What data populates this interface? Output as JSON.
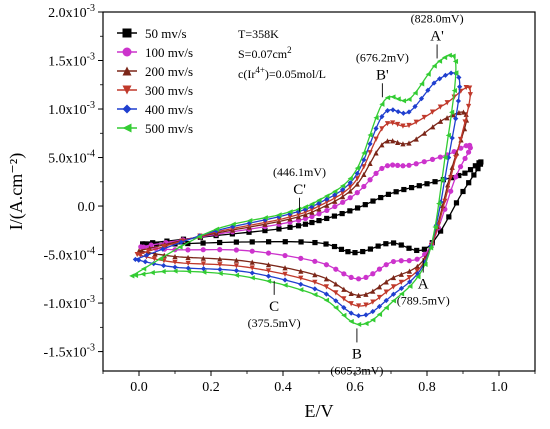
{
  "chart_data": {
    "type": "line",
    "xlabel": "E/V",
    "ylabel": "I/(A.cm⁻²)",
    "xlim": [
      -0.1,
      1.1
    ],
    "ylim": [
      -0.0017,
      0.002
    ],
    "x_ticks": [
      0.0,
      0.2,
      0.4,
      0.6,
      0.8,
      1.0
    ],
    "x_tick_labels": [
      "0.0",
      "0.2",
      "0.4",
      "0.6",
      "0.8",
      "1.0"
    ],
    "y_ticks": [
      0.002,
      0.0015,
      0.001,
      0.0005,
      0.0,
      -0.0005,
      -0.001,
      -0.0015
    ],
    "y_tick_labels": [
      {
        "mant": "2.0x10",
        "exp": "-3"
      },
      {
        "mant": "1.5x10",
        "exp": "-3"
      },
      {
        "mant": "1.0x10",
        "exp": "-3"
      },
      {
        "mant": "5.0x10",
        "exp": "-4"
      },
      {
        "mant": "0.0",
        "exp": ""
      },
      {
        "mant": "-5.0x10",
        "exp": "-4"
      },
      {
        "mant": "-1.0x10",
        "exp": "-3"
      },
      {
        "mant": "-1.5x10",
        "exp": "-3"
      }
    ],
    "legend_position": "top-left",
    "conditions": [
      {
        "text": "T=358K"
      },
      {
        "text": "S=0.07cm",
        "sup": "2"
      },
      {
        "text": "c(Ir",
        "sup": "4+",
        "tail": ")=0.05mol/L"
      }
    ],
    "series": [
      {
        "name": "50 mv/s",
        "color": "#000000",
        "marker": "square",
        "anodic": [
          [
            0.01,
            -0.00039
          ],
          [
            0.2,
            -0.00031
          ],
          [
            0.4,
            -0.00023
          ],
          [
            0.5,
            -0.00015
          ],
          [
            0.6,
            -3e-05
          ],
          [
            0.7,
            0.00013
          ],
          [
            0.8,
            0.00023
          ],
          [
            0.9,
            0.00033
          ],
          [
            0.95,
            0.00045
          ]
        ],
        "cathodic": [
          [
            0.95,
            0.00045
          ],
          [
            0.9,
            0.00015
          ],
          [
            0.8,
            -0.00043
          ],
          [
            0.7,
            -0.00038
          ],
          [
            0.6,
            -0.00048
          ],
          [
            0.5,
            -0.00038
          ],
          [
            0.3,
            -0.00037
          ],
          [
            0.1,
            -0.00039
          ],
          [
            0.01,
            -0.00039
          ]
        ]
      },
      {
        "name": "100 mv/s",
        "color": "#cc33cc",
        "marker": "circle",
        "anodic": [
          [
            0.005,
            -0.00042
          ],
          [
            0.2,
            -0.0003
          ],
          [
            0.4,
            -0.00018
          ],
          [
            0.5,
            -8e-05
          ],
          [
            0.6,
            0.00012
          ],
          [
            0.68,
            0.0004
          ],
          [
            0.75,
            0.00042
          ],
          [
            0.85,
            0.00052
          ],
          [
            0.92,
            0.00062
          ]
        ],
        "cathodic": [
          [
            0.92,
            0.00062
          ],
          [
            0.88,
            0.0003
          ],
          [
            0.8,
            -0.00047
          ],
          [
            0.7,
            -0.00058
          ],
          [
            0.61,
            -0.00075
          ],
          [
            0.5,
            -0.00058
          ],
          [
            0.3,
            -0.00046
          ],
          [
            0.1,
            -0.00045
          ],
          [
            0.005,
            -0.00042
          ]
        ]
      },
      {
        "name": "200 mv/s",
        "color": "#7b2618",
        "marker": "triangle-up",
        "anodic": [
          [
            0.0,
            -0.00046
          ],
          [
            0.2,
            -0.00029
          ],
          [
            0.4,
            -0.00015
          ],
          [
            0.5,
            -3e-05
          ],
          [
            0.6,
            0.0002
          ],
          [
            0.68,
            0.00065
          ],
          [
            0.75,
            0.00065
          ],
          [
            0.85,
            0.0009
          ],
          [
            0.91,
            0.00093
          ]
        ],
        "cathodic": [
          [
            0.91,
            0.00093
          ],
          [
            0.87,
            0.0004
          ],
          [
            0.8,
            -0.0005
          ],
          [
            0.7,
            -0.00075
          ],
          [
            0.61,
            -0.00092
          ],
          [
            0.5,
            -0.00072
          ],
          [
            0.3,
            -0.00057
          ],
          [
            0.1,
            -0.00052
          ],
          [
            0.0,
            -0.00046
          ]
        ]
      },
      {
        "name": "300 mv/s",
        "color": "#c0392b",
        "marker": "triangle-down",
        "anodic": [
          [
            -0.005,
            -0.0005
          ],
          [
            0.2,
            -0.00028
          ],
          [
            0.4,
            -0.00013
          ],
          [
            0.5,
            0.0
          ],
          [
            0.6,
            0.00025
          ],
          [
            0.68,
            0.00082
          ],
          [
            0.75,
            0.00083
          ],
          [
            0.85,
            0.00105
          ],
          [
            0.92,
            0.0012
          ]
        ],
        "cathodic": [
          [
            0.92,
            0.0012
          ],
          [
            0.88,
            0.0005
          ],
          [
            0.8,
            -0.00052
          ],
          [
            0.7,
            -0.00085
          ],
          [
            0.61,
            -0.00103
          ],
          [
            0.5,
            -0.0008
          ],
          [
            0.3,
            -0.00063
          ],
          [
            0.1,
            -0.00058
          ],
          [
            -0.005,
            -0.0005
          ]
        ]
      },
      {
        "name": "400 mv/s",
        "color": "#1f3fcf",
        "marker": "diamond",
        "anodic": [
          [
            -0.01,
            -0.00055
          ],
          [
            0.2,
            -0.00027
          ],
          [
            0.4,
            -0.0001
          ],
          [
            0.5,
            3e-05
          ],
          [
            0.6,
            0.0003
          ],
          [
            0.68,
            0.00095
          ],
          [
            0.75,
            0.00097
          ],
          [
            0.83,
            0.0013
          ],
          [
            0.89,
            0.0013
          ]
        ],
        "cathodic": [
          [
            0.89,
            0.0013
          ],
          [
            0.86,
            0.0005
          ],
          [
            0.8,
            -0.00053
          ],
          [
            0.7,
            -0.00093
          ],
          [
            0.61,
            -0.00113
          ],
          [
            0.5,
            -0.00087
          ],
          [
            0.3,
            -0.00068
          ],
          [
            0.1,
            -0.00063
          ],
          [
            -0.01,
            -0.00055
          ]
        ]
      },
      {
        "name": "500 mv/s",
        "color": "#33cc33",
        "marker": "triangle-left",
        "anodic": [
          [
            -0.02,
            -0.00072
          ],
          [
            0.2,
            -0.00026
          ],
          [
            0.4,
            -8e-05
          ],
          [
            0.5,
            6e-05
          ],
          [
            0.6,
            0.00035
          ],
          [
            0.68,
            0.00108
          ],
          [
            0.75,
            0.0011
          ],
          [
            0.83,
            0.00148
          ],
          [
            0.88,
            0.00146
          ]
        ],
        "cathodic": [
          [
            0.88,
            0.00146
          ],
          [
            0.85,
            0.0005
          ],
          [
            0.8,
            -0.00055
          ],
          [
            0.7,
            -0.001
          ],
          [
            0.61,
            -0.00122
          ],
          [
            0.5,
            -0.00093
          ],
          [
            0.3,
            -0.00073
          ],
          [
            0.1,
            -0.00067
          ],
          [
            -0.02,
            -0.00072
          ]
        ]
      }
    ],
    "annotations": [
      {
        "letter": "A'",
        "value": "(828.0mV)",
        "x": 0.828,
        "y": 0.00148,
        "place": "above"
      },
      {
        "letter": "B'",
        "value": "(676.2mV)",
        "x": 0.676,
        "y": 0.00108,
        "place": "above"
      },
      {
        "letter": "C'",
        "value": "(446.1mV)",
        "x": 0.446,
        "y": -0.0001,
        "place": "above"
      },
      {
        "letter": "A",
        "value": "(789.5mV)",
        "x": 0.7895,
        "y": -0.0005,
        "place": "below"
      },
      {
        "letter": "B",
        "value": "(605.3mV)",
        "x": 0.6053,
        "y": -0.00122,
        "place": "below"
      },
      {
        "letter": "C",
        "value": "(375.5mV)",
        "x": 0.3755,
        "y": -0.00073,
        "place": "below"
      }
    ]
  }
}
